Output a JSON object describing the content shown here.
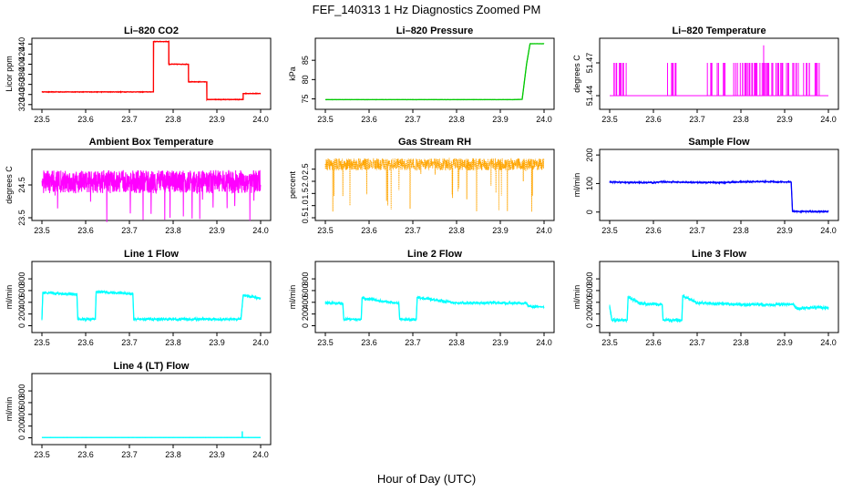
{
  "figure": {
    "title": "FEF_140313  1 Hz Diagnostics Zoomed PM",
    "xlabel": "Hour of Day (UTC)"
  },
  "chart_data": [
    {
      "id": "co2",
      "type": "line",
      "title": "Li–820 CO2",
      "ylabel": "Licor ppm",
      "color": "#ff0000",
      "xlim": [
        23.5,
        24.0
      ],
      "ylim": [
        316,
        446
      ],
      "xticks": [
        "23.5",
        "23.6",
        "23.7",
        "23.8",
        "23.9",
        "24.0"
      ],
      "yticks": [
        "320",
        "340",
        "360",
        "380",
        "400",
        "420",
        "440"
      ],
      "style": "steps",
      "noise": 0.8,
      "points": [
        [
          23.5,
          345
        ],
        [
          23.755,
          345
        ],
        [
          23.755,
          445
        ],
        [
          23.79,
          445
        ],
        [
          23.79,
          400
        ],
        [
          23.835,
          400
        ],
        [
          23.835,
          365
        ],
        [
          23.877,
          365
        ],
        [
          23.877,
          330
        ],
        [
          23.96,
          330
        ],
        [
          23.96,
          342
        ],
        [
          24.0,
          342
        ]
      ]
    },
    {
      "id": "pressure",
      "type": "line",
      "title": "Li–820 Pressure",
      "ylabel": "kPa",
      "color": "#00c800",
      "xlim": [
        23.5,
        24.0
      ],
      "ylim": [
        73,
        90
      ],
      "xticks": [
        "23.5",
        "23.6",
        "23.7",
        "23.8",
        "23.9",
        "24.0"
      ],
      "yticks": [
        "75",
        "80",
        "85"
      ],
      "style": "line",
      "noise": 0.05,
      "points": [
        [
          23.5,
          74.8
        ],
        [
          23.93,
          74.8
        ],
        [
          23.95,
          74.9
        ],
        [
          23.96,
          84
        ],
        [
          23.968,
          89.3
        ],
        [
          24.0,
          89.3
        ]
      ]
    },
    {
      "id": "temperature",
      "type": "line",
      "title": "Li–820 Temperature",
      "ylabel": "degrees C",
      "color": "#ff00ff",
      "xlim": [
        23.5,
        24.0
      ],
      "ylim": [
        51.43,
        51.49
      ],
      "xticks": [
        "23.5",
        "23.6",
        "23.7",
        "23.8",
        "23.9",
        "24.0"
      ],
      "yticks": [
        "51.44",
        "51.47"
      ],
      "style": "telegraph",
      "low": 51.44,
      "high": 51.47,
      "spike": [
        23.852,
        51.486
      ],
      "segments": [
        [
          23.505,
          23.54,
          0.55
        ],
        [
          23.62,
          23.66,
          0.35
        ],
        [
          23.72,
          23.8,
          0.3
        ],
        [
          23.8,
          23.98,
          0.55
        ]
      ]
    },
    {
      "id": "ambient",
      "type": "line",
      "title": "Ambient Box Temperature",
      "ylabel": "degrees C",
      "color": "#ff00ff",
      "xlim": [
        23.5,
        24.0
      ],
      "ylim": [
        23.5,
        25.5
      ],
      "xticks": [
        "23.5",
        "23.6",
        "23.7",
        "23.8",
        "23.9",
        "24.0"
      ],
      "yticks": [
        "23.5",
        "24.5"
      ],
      "style": "noise",
      "center": 24.6,
      "amp": 0.35,
      "dips": 0.9
    },
    {
      "id": "rh",
      "type": "scatter",
      "title": "Gas Stream RH",
      "ylabel": "percent",
      "color": "#ffa500",
      "xlim": [
        23.5,
        24.0
      ],
      "ylim": [
        0.5,
        3.2
      ],
      "xticks": [
        "23.5",
        "23.6",
        "23.7",
        "23.8",
        "23.9",
        "24.0"
      ],
      "yticks": [
        "0.5",
        "1.0",
        "1.5",
        "2.0",
        "2.5"
      ],
      "style": "noise",
      "center": 2.7,
      "amp": 0.25,
      "dips": 1.8
    },
    {
      "id": "sampleflow",
      "type": "line",
      "title": "Sample Flow",
      "ylabel": "ml/min",
      "color": "#0000ff",
      "xlim": [
        23.5,
        24.0
      ],
      "ylim": [
        -20,
        210
      ],
      "xticks": [
        "23.5",
        "23.6",
        "23.7",
        "23.8",
        "23.9",
        "24.0"
      ],
      "yticks": [
        "0",
        "100",
        "200"
      ],
      "style": "line",
      "noise": 3,
      "points": [
        [
          23.5,
          105
        ],
        [
          23.6,
          103
        ],
        [
          23.62,
          106
        ],
        [
          23.7,
          104
        ],
        [
          23.75,
          103
        ],
        [
          23.8,
          106
        ],
        [
          23.85,
          107
        ],
        [
          23.88,
          106
        ],
        [
          23.915,
          105
        ],
        [
          23.918,
          2
        ],
        [
          24.0,
          2
        ]
      ]
    },
    {
      "id": "line1",
      "type": "line",
      "title": "Line 1 Flow",
      "ylabel": "ml/min",
      "color": "#00ffff",
      "xlim": [
        23.5,
        24.0
      ],
      "ylim": [
        -70,
        1050
      ],
      "xticks": [
        "23.5",
        "23.6",
        "23.7",
        "23.8",
        "23.9",
        "24.0"
      ],
      "yticks": [
        "0",
        "200",
        "400",
        "600",
        "800"
      ],
      "style": "line",
      "noise": 25,
      "points": [
        [
          23.5,
          110
        ],
        [
          23.502,
          560
        ],
        [
          23.58,
          540
        ],
        [
          23.582,
          110
        ],
        [
          23.622,
          110
        ],
        [
          23.624,
          580
        ],
        [
          23.708,
          545
        ],
        [
          23.71,
          110
        ],
        [
          23.955,
          110
        ],
        [
          23.96,
          520
        ],
        [
          24.0,
          470
        ]
      ]
    },
    {
      "id": "line2",
      "type": "line",
      "title": "Line 2 Flow",
      "ylabel": "ml/min",
      "color": "#00ffff",
      "xlim": [
        23.5,
        24.0
      ],
      "ylim": [
        -70,
        1050
      ],
      "xticks": [
        "23.5",
        "23.6",
        "23.7",
        "23.8",
        "23.9",
        "24.0"
      ],
      "yticks": [
        "0",
        "200",
        "400",
        "600",
        "800"
      ],
      "style": "line",
      "noise": 25,
      "points": [
        [
          23.5,
          390
        ],
        [
          23.54,
          380
        ],
        [
          23.542,
          110
        ],
        [
          23.582,
          110
        ],
        [
          23.584,
          470
        ],
        [
          23.668,
          380
        ],
        [
          23.67,
          110
        ],
        [
          23.708,
          110
        ],
        [
          23.71,
          480
        ],
        [
          23.8,
          390
        ],
        [
          23.9,
          390
        ],
        [
          23.96,
          380
        ],
        [
          23.965,
          330
        ],
        [
          24.0,
          320
        ]
      ]
    },
    {
      "id": "line3",
      "type": "line",
      "title": "Line 3 Flow",
      "ylabel": "ml/min",
      "color": "#00ffff",
      "xlim": [
        23.5,
        24.0
      ],
      "ylim": [
        -70,
        1050
      ],
      "xticks": [
        "23.5",
        "23.6",
        "23.7",
        "23.8",
        "23.9",
        "24.0"
      ],
      "yticks": [
        "0",
        "200",
        "400",
        "600",
        "800"
      ],
      "style": "line",
      "noise": 30,
      "points": [
        [
          23.5,
          330
        ],
        [
          23.505,
          95
        ],
        [
          23.54,
          95
        ],
        [
          23.542,
          490
        ],
        [
          23.57,
          380
        ],
        [
          23.62,
          360
        ],
        [
          23.622,
          95
        ],
        [
          23.665,
          100
        ],
        [
          23.667,
          510
        ],
        [
          23.7,
          390
        ],
        [
          23.8,
          360
        ],
        [
          23.92,
          360
        ],
        [
          23.925,
          300
        ],
        [
          24.0,
          310
        ]
      ]
    },
    {
      "id": "line4",
      "type": "line",
      "title": "Line 4 (LT) Flow",
      "ylabel": "ml/min",
      "color": "#00ffff",
      "xlim": [
        23.5,
        24.0
      ],
      "ylim": [
        -70,
        1050
      ],
      "xticks": [
        "23.5",
        "23.6",
        "23.7",
        "23.8",
        "23.9",
        "24.0"
      ],
      "yticks": [
        "0",
        "200",
        "400",
        "600",
        "800"
      ],
      "style": "line",
      "noise": 3,
      "spike": [
        23.958,
        110
      ],
      "points": [
        [
          23.5,
          5
        ],
        [
          24.0,
          5
        ]
      ]
    }
  ]
}
